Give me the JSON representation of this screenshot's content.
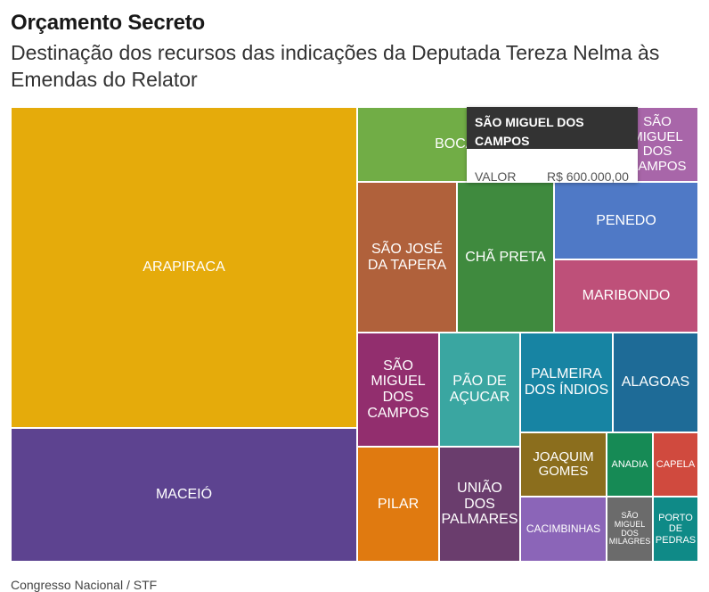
{
  "header": {
    "title": "Orçamento Secreto",
    "subtitle": "Destinação dos recursos das indicações da Deputada Tereza Nelma às Emendas do Relator"
  },
  "chart_data": {
    "type": "treemap",
    "tiles": [
      {
        "id": "arapiraca",
        "label": "ARAPIRACA",
        "color": "#e5ab0b"
      },
      {
        "id": "maceio",
        "label": "MACEIÓ",
        "color": "#5d4390"
      },
      {
        "id": "boca-da-mata",
        "label": "BOCA DA MATA",
        "color": "#71ad46"
      },
      {
        "id": "sao-miguel-dos-campos-top",
        "label": "SÃO MIGUEL DOS CAMPOS",
        "color": "#a866a9"
      },
      {
        "id": "sao-jose-da-tapera",
        "label": "SÃO JOSÉ DA TAPERA",
        "color": "#b0613b"
      },
      {
        "id": "cha-preta",
        "label": "CHÃ PRETA",
        "color": "#3f8a3e"
      },
      {
        "id": "penedo",
        "label": "PENEDO",
        "color": "#4f79c6"
      },
      {
        "id": "maribondo",
        "label": "MARIBONDO",
        "color": "#be5079"
      },
      {
        "id": "sao-miguel-dos-campos",
        "label": "SÃO MIGUEL DOS CAMPOS",
        "color": "#922e6e"
      },
      {
        "id": "pao-de-acucar",
        "label": "PÃO DE AÇUCAR",
        "color": "#3aa6a1"
      },
      {
        "id": "palmeira-dos-indios",
        "label": "PALMEIRA DOS ÍNDIOS",
        "color": "#1784a3"
      },
      {
        "id": "alagoas",
        "label": "ALAGOAS",
        "color": "#1e6b97"
      },
      {
        "id": "pilar",
        "label": "PILAR",
        "color": "#e07a10"
      },
      {
        "id": "uniao-dos-palmares",
        "label": "UNIÃO DOS PALMARES",
        "color": "#6a3d6d"
      },
      {
        "id": "joaquim-gomes",
        "label": "JOAQUIM GOMES",
        "color": "#8b6e1d"
      },
      {
        "id": "anadia",
        "label": "ANADIA",
        "color": "#168a55"
      },
      {
        "id": "capela",
        "label": "CAPELA",
        "color": "#d04a3e"
      },
      {
        "id": "cacimbinhas",
        "label": "CACIMBINHAS",
        "color": "#8b65b8"
      },
      {
        "id": "sao-miguel-dos-milagres",
        "label": "SÃO MIGUEL DOS MILAGRES",
        "color": "#6b6b6b"
      },
      {
        "id": "porto-de-pedras",
        "label": "PORTO DE PEDRAS",
        "color": "#0f8a87"
      }
    ]
  },
  "tooltip": {
    "title": "SÃO MIGUEL DOS CAMPOS",
    "field_label": "VALOR",
    "field_value": "R$ 600.000,00"
  },
  "footer": {
    "source": "Congresso Nacional / STF"
  }
}
